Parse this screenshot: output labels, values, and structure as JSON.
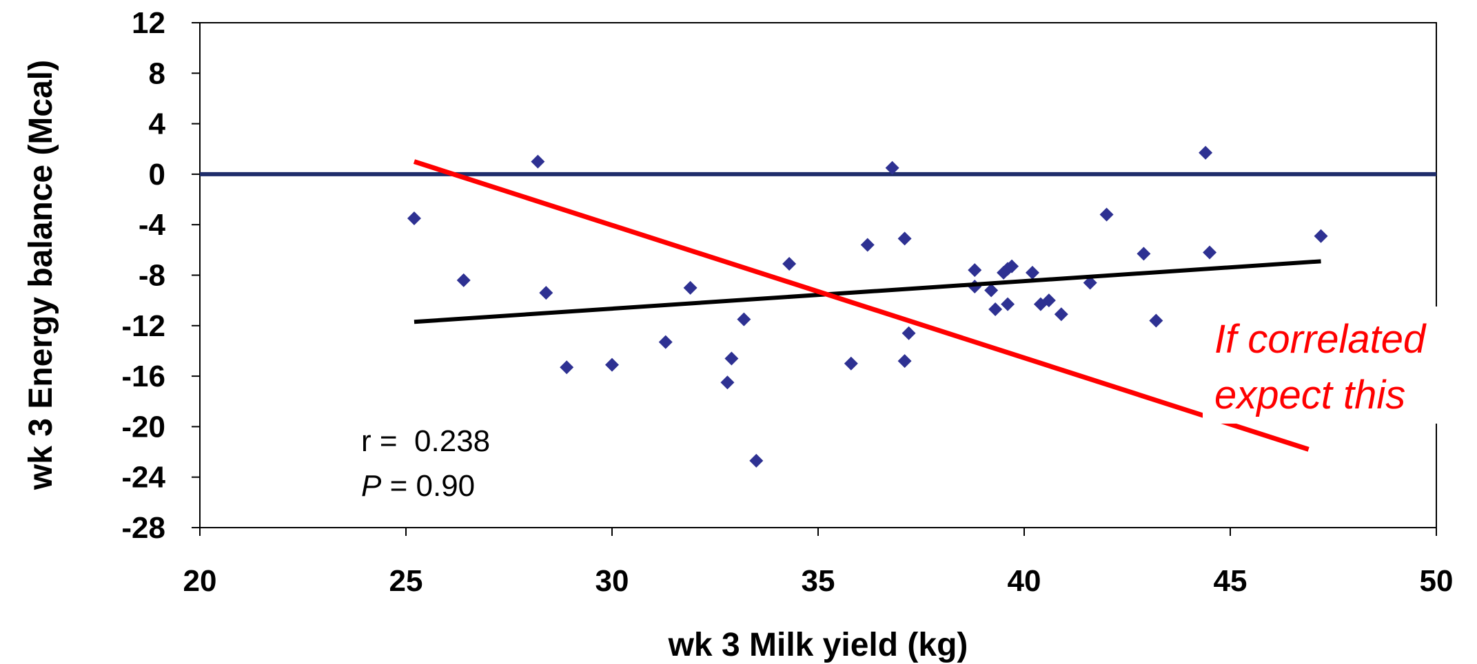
{
  "chart_data": {
    "type": "scatter",
    "xlabel": "wk 3 Milk yield (kg)",
    "ylabel": "wk 3 Energy balance (Mcal)",
    "xlim": [
      20,
      50
    ],
    "ylim": [
      -28,
      12
    ],
    "x_ticks": [
      20,
      25,
      30,
      35,
      40,
      45,
      50
    ],
    "y_ticks": [
      12,
      8,
      4,
      0,
      -4,
      -8,
      -12,
      -16,
      -20,
      -24,
      -28
    ],
    "grid": false,
    "colors": {
      "points": "#2e3192",
      "zero_line": "#1f2d6b",
      "fit_line": "#000000",
      "expected_line": "#ff0000"
    },
    "points": [
      {
        "x": 25.2,
        "y": -3.5
      },
      {
        "x": 26.4,
        "y": -8.4
      },
      {
        "x": 28.2,
        "y": 1.0
      },
      {
        "x": 28.4,
        "y": -9.4
      },
      {
        "x": 28.9,
        "y": -15.3
      },
      {
        "x": 30.0,
        "y": -15.1
      },
      {
        "x": 31.3,
        "y": -13.3
      },
      {
        "x": 31.9,
        "y": -9.0
      },
      {
        "x": 32.8,
        "y": -16.5
      },
      {
        "x": 32.9,
        "y": -14.6
      },
      {
        "x": 33.2,
        "y": -11.5
      },
      {
        "x": 33.5,
        "y": -22.7
      },
      {
        "x": 34.3,
        "y": -7.1
      },
      {
        "x": 35.8,
        "y": -15.0
      },
      {
        "x": 36.2,
        "y": -5.6
      },
      {
        "x": 36.8,
        "y": 0.5
      },
      {
        "x": 37.1,
        "y": -5.1
      },
      {
        "x": 37.1,
        "y": -14.8
      },
      {
        "x": 37.2,
        "y": -12.6
      },
      {
        "x": 38.8,
        "y": -7.6
      },
      {
        "x": 38.8,
        "y": -8.9
      },
      {
        "x": 39.2,
        "y": -9.2
      },
      {
        "x": 39.3,
        "y": -10.7
      },
      {
        "x": 39.5,
        "y": -7.8
      },
      {
        "x": 39.6,
        "y": -10.3
      },
      {
        "x": 39.6,
        "y": -7.5
      },
      {
        "x": 39.7,
        "y": -7.3
      },
      {
        "x": 40.2,
        "y": -7.8
      },
      {
        "x": 40.4,
        "y": -10.3
      },
      {
        "x": 40.6,
        "y": -10.0
      },
      {
        "x": 40.9,
        "y": -11.1
      },
      {
        "x": 41.6,
        "y": -8.6
      },
      {
        "x": 42.0,
        "y": -3.2
      },
      {
        "x": 42.9,
        "y": -6.3
      },
      {
        "x": 43.2,
        "y": -11.6
      },
      {
        "x": 44.4,
        "y": 1.7
      },
      {
        "x": 44.5,
        "y": -6.2
      },
      {
        "x": 47.2,
        "y": -4.9
      }
    ],
    "reference_line": {
      "y": 0
    },
    "fit_line": {
      "x": [
        25.2,
        47.2
      ],
      "y": [
        -11.7,
        -6.9
      ]
    },
    "expected_line": {
      "x": [
        25.2,
        46.9
      ],
      "y": [
        1.0,
        -21.8
      ]
    },
    "stats": {
      "r_label": "r =  0.238",
      "p_italic": "P",
      "p_rest": " = 0.90"
    },
    "annotation": {
      "line1": "If correlated",
      "line2": "expect this"
    }
  }
}
